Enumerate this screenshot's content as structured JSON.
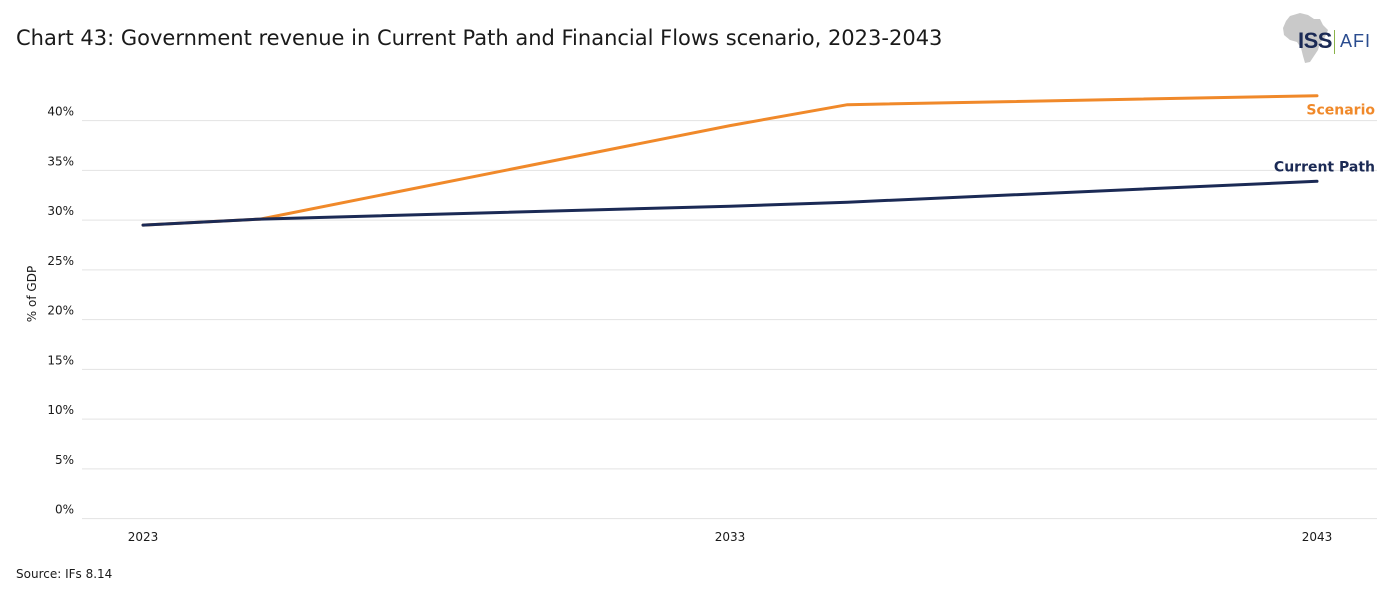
{
  "header": {
    "title": "Chart 43: Government revenue in Current Path and Financial Flows scenario, 2023-2043"
  },
  "logo": {
    "left_text": "ISS",
    "right_text": "AFI"
  },
  "footer": {
    "source": "Source: IFs 8.14"
  },
  "colors": {
    "scenario": "#f0892a",
    "current_path": "#1b2a55",
    "grid": "#e3e3e3",
    "logo_map": "#c9c9c9"
  },
  "chart_data": {
    "type": "line",
    "title": "Chart 43: Government revenue in Current Path and Financial Flows scenario, 2023-2043",
    "xlabel": "",
    "ylabel": "% of GDP",
    "xlim": [
      2023,
      2043
    ],
    "ylim": [
      0,
      45
    ],
    "grid": true,
    "x_ticks": [
      2023,
      2033,
      2043
    ],
    "x_tick_labels": [
      "2023",
      "2033",
      "2043"
    ],
    "y_ticks": [
      0,
      5,
      10,
      15,
      20,
      25,
      30,
      35,
      40
    ],
    "y_tick_labels": [
      "0%",
      "5%",
      "10%",
      "15%",
      "20%",
      "25%",
      "30%",
      "35%",
      "40%"
    ],
    "series": [
      {
        "name": "Scenario",
        "key": "scenario",
        "x": [
          2023,
          2025,
          2033,
          2035,
          2043
        ],
        "values": [
          29.5,
          30.1,
          39.5,
          41.6,
          42.5
        ]
      },
      {
        "name": "Current Path",
        "key": "current_path",
        "x": [
          2023,
          2025,
          2033,
          2035,
          2043
        ],
        "values": [
          29.5,
          30.1,
          31.4,
          31.8,
          33.9
        ]
      }
    ]
  }
}
